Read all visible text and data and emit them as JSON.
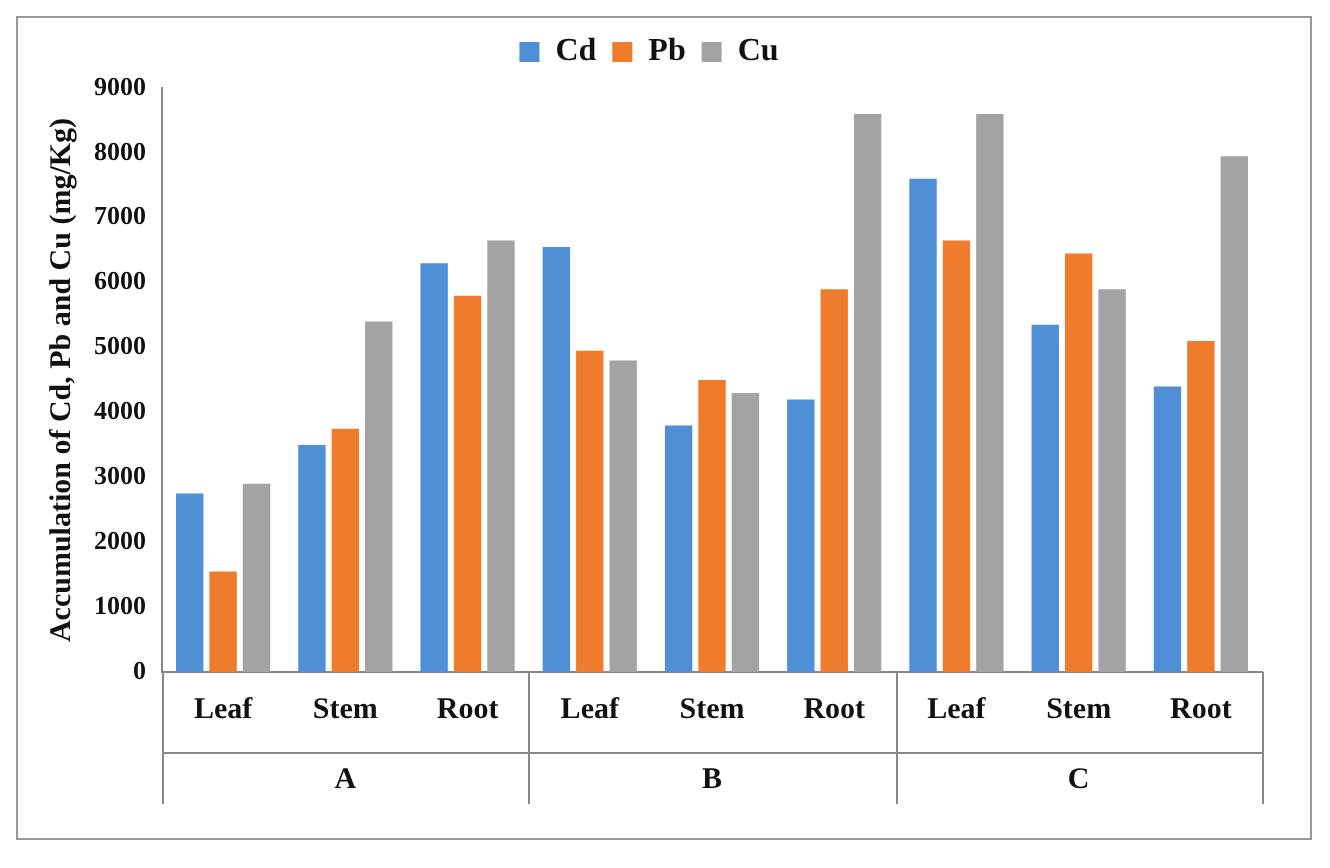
{
  "chart_data": {
    "type": "bar",
    "ylabel": "Accumulation of Cd, Pb and Cu (mg/Kg)",
    "categories": [
      "Leaf",
      "Stem",
      "Root",
      "Leaf",
      "Stem",
      "Root",
      "Leaf",
      "Stem",
      "Root"
    ],
    "series": [
      {
        "name": "Cd",
        "color": "#4f8fd6",
        "values": [
          2750,
          3500,
          6300,
          6550,
          3800,
          4200,
          7600,
          5350,
          4400
        ]
      },
      {
        "name": "Pb",
        "color": "#ef7b2c",
        "values": [
          1550,
          3750,
          5800,
          4950,
          4500,
          5900,
          6650,
          6450,
          5100
        ]
      },
      {
        "name": "Cu",
        "color": "#a3a3a3",
        "values": [
          2900,
          5400,
          6650,
          4800,
          4300,
          8600,
          8600,
          5900,
          7950
        ]
      }
    ],
    "annotations": [
      "A",
      "B",
      "C"
    ],
    "ylim": [
      0,
      9000
    ],
    "yticks": [
      0,
      1000,
      2000,
      3000,
      4000,
      5000,
      6000,
      7000,
      8000,
      9000
    ],
    "grid": false,
    "legend": "top"
  }
}
